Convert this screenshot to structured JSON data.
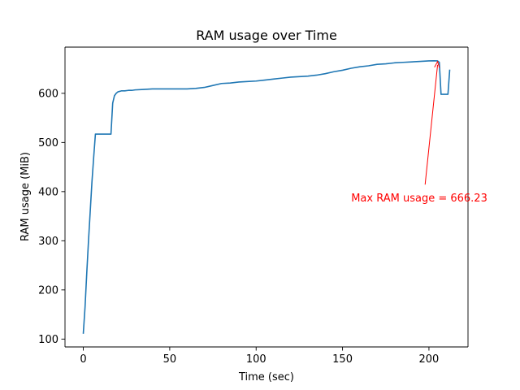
{
  "chart_data": {
    "type": "line",
    "title": "RAM usage over Time",
    "xlabel": "Time (sec)",
    "ylabel": "RAM usage (MiB)",
    "xlim": [
      -10.6,
      222.6
    ],
    "ylim": [
      84,
      694
    ],
    "xticks": [
      0,
      50,
      100,
      150,
      200
    ],
    "yticks": [
      100,
      200,
      300,
      400,
      500,
      600
    ],
    "grid": false,
    "line_color": "#1f77b4",
    "series": [
      {
        "x": [
          0,
          1,
          2,
          3,
          4,
          5,
          6,
          7,
          8,
          9,
          10,
          11,
          12,
          13,
          14,
          15,
          16,
          17,
          18,
          19,
          20,
          22,
          24,
          26,
          28,
          30,
          35,
          40,
          45,
          50,
          55,
          60,
          65,
          70,
          75,
          80,
          85,
          90,
          95,
          100,
          105,
          110,
          115,
          120,
          125,
          130,
          135,
          140,
          145,
          150,
          155,
          160,
          165,
          170,
          175,
          180,
          185,
          190,
          195,
          200,
          203,
          205,
          206,
          207,
          208,
          209,
          210,
          211,
          212
        ],
        "y": [
          112,
          165,
          235,
          300,
          360,
          420,
          470,
          517,
          517,
          517,
          517,
          517,
          517,
          517,
          517,
          517,
          517,
          580,
          595,
          600,
          603,
          605,
          605,
          606,
          606,
          607,
          608,
          609,
          609,
          609,
          609,
          609,
          610,
          612,
          616,
          620,
          621,
          623,
          624,
          625,
          627,
          629,
          631,
          633,
          634,
          635,
          637,
          640,
          644,
          647,
          651,
          654,
          656,
          659,
          660,
          662,
          663,
          664,
          665,
          666,
          666.23,
          666,
          663,
          598,
          598,
          598,
          598,
          598,
          647
        ]
      }
    ],
    "annotation": {
      "text": "Max RAM usage = 666.23",
      "color": "#ff0000",
      "xy": [
        205,
        666.23
      ],
      "text_xy": [
        155,
        368
      ]
    }
  }
}
